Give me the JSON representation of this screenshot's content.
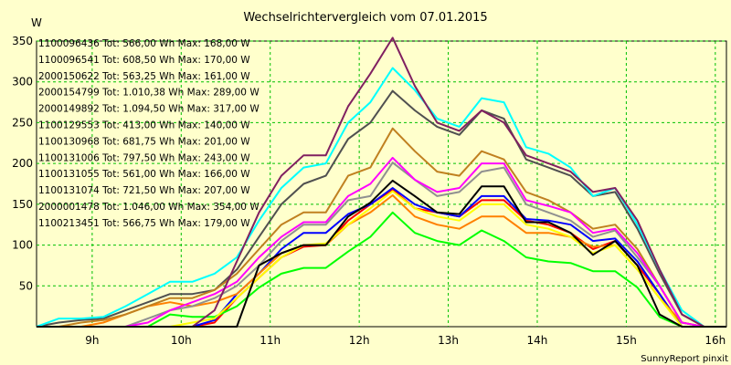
{
  "chart_data": {
    "type": "line",
    "title": "Wechselrichtervergleich vom 07.01.2015",
    "ylabel": "W",
    "xlabel": "",
    "ylim": [
      0,
      350
    ],
    "yticks": [
      50,
      100,
      150,
      200,
      250,
      300,
      350
    ],
    "xlim": [
      8.375,
      16.125
    ],
    "xticks": [
      9,
      10,
      11,
      12,
      13,
      14,
      15,
      16
    ],
    "xtick_labels": [
      "9h",
      "10h",
      "11h",
      "12h",
      "13h",
      "14h",
      "15h",
      "16h"
    ],
    "grid": true,
    "legend_position": "top-left",
    "x": [
      8.375,
      8.625,
      8.875,
      9.125,
      9.375,
      9.625,
      9.875,
      10.125,
      10.375,
      10.625,
      10.875,
      11.125,
      11.375,
      11.625,
      11.875,
      12.125,
      12.375,
      12.625,
      12.875,
      13.125,
      13.375,
      13.625,
      13.875,
      14.125,
      14.375,
      14.625,
      14.875,
      15.125,
      15.375,
      15.625,
      15.875,
      16.125
    ],
    "series": [
      {
        "name": "1100096436 Tot: 566,00 Wh Max: 168,00 W",
        "color": "#ff0000",
        "values": [
          0,
          0,
          0,
          0,
          0,
          0,
          0,
          0,
          5,
          35,
          60,
          85,
          98,
          100,
          130,
          150,
          168,
          145,
          140,
          135,
          155,
          155,
          130,
          125,
          115,
          95,
          105,
          75,
          40,
          0,
          0,
          0
        ]
      },
      {
        "name": "1100096541 Tot: 608,50 Wh Max: 170,00 W",
        "color": "#0000ff",
        "values": [
          0,
          0,
          0,
          0,
          0,
          0,
          0,
          0,
          8,
          40,
          65,
          95,
          115,
          115,
          138,
          150,
          170,
          150,
          140,
          135,
          160,
          160,
          132,
          130,
          125,
          105,
          108,
          80,
          40,
          0,
          0,
          0
        ]
      },
      {
        "name": "2000150622 Tot: 563,25 Wh Max: 161,00 W",
        "color": "#ff8000",
        "values": [
          0,
          0,
          0,
          5,
          15,
          25,
          30,
          25,
          30,
          40,
          65,
          90,
          100,
          100,
          125,
          140,
          161,
          135,
          125,
          120,
          135,
          135,
          115,
          115,
          110,
          98,
          100,
          70,
          35,
          5,
          0,
          0
        ]
      },
      {
        "name": "2000154799 Tot: 1.010,38 Wh Max: 289,00 W",
        "color": "#505050",
        "values": [
          0,
          5,
          8,
          10,
          20,
          30,
          40,
          40,
          45,
          70,
          110,
          150,
          175,
          185,
          230,
          250,
          289,
          265,
          245,
          235,
          265,
          255,
          205,
          195,
          185,
          160,
          165,
          120,
          65,
          15,
          0,
          0
        ]
      },
      {
        "name": "2000149892 Tot: 1.094,50 Wh Max: 317,00 W",
        "color": "#00ffff",
        "values": [
          0,
          10,
          10,
          12,
          25,
          40,
          55,
          55,
          65,
          85,
          130,
          170,
          195,
          200,
          250,
          275,
          317,
          290,
          255,
          245,
          280,
          275,
          220,
          212,
          195,
          160,
          170,
          125,
          70,
          20,
          0,
          0
        ]
      },
      {
        "name": "1100129553 Tot: 413,00 Wh Max: 140,00 W",
        "color": "#00ff00",
        "values": [
          0,
          0,
          0,
          0,
          0,
          0,
          15,
          12,
          12,
          25,
          48,
          65,
          72,
          72,
          92,
          110,
          140,
          115,
          105,
          100,
          118,
          105,
          85,
          80,
          78,
          68,
          68,
          48,
          12,
          0,
          0,
          0
        ]
      },
      {
        "name": "1100130968 Tot: 681,75 Wh Max: 201,00 W",
        "color": "#909090",
        "values": [
          0,
          0,
          0,
          0,
          0,
          10,
          20,
          25,
          35,
          50,
          75,
          105,
          125,
          125,
          155,
          160,
          201,
          180,
          160,
          165,
          190,
          195,
          150,
          140,
          130,
          110,
          118,
          85,
          50,
          5,
          0,
          0
        ]
      },
      {
        "name": "1100131006 Tot: 797,50 Wh Max: 243,00 W",
        "color": "#c08020",
        "values": [
          0,
          0,
          5,
          8,
          15,
          25,
          35,
          35,
          45,
          65,
          95,
          125,
          140,
          140,
          185,
          195,
          243,
          215,
          190,
          185,
          215,
          205,
          165,
          155,
          140,
          120,
          125,
          95,
          50,
          5,
          0,
          0
        ]
      },
      {
        "name": "1100131055 Tot: 561,00 Wh Max: 166,00 W",
        "color": "#ffff00",
        "values": [
          0,
          0,
          0,
          0,
          0,
          0,
          0,
          5,
          10,
          35,
          60,
          85,
          100,
          102,
          125,
          145,
          166,
          145,
          135,
          130,
          150,
          150,
          125,
          120,
          110,
          90,
          100,
          70,
          35,
          0,
          0,
          0
        ]
      },
      {
        "name": "1100131074 Tot: 721,50 Wh Max: 207,00 W",
        "color": "#ff00ff",
        "values": [
          0,
          0,
          0,
          0,
          0,
          5,
          20,
          30,
          40,
          55,
          85,
          110,
          128,
          128,
          160,
          175,
          207,
          180,
          165,
          170,
          200,
          200,
          155,
          148,
          140,
          115,
          120,
          90,
          50,
          5,
          0,
          0
        ]
      },
      {
        "name": "2000001478 Tot: 1.046,00 Wh Max: 354,00 W",
        "color": "#802060",
        "values": [
          0,
          0,
          0,
          0,
          0,
          0,
          0,
          0,
          20,
          80,
          140,
          185,
          210,
          210,
          270,
          310,
          354,
          295,
          250,
          240,
          265,
          250,
          210,
          200,
          190,
          165,
          170,
          130,
          70,
          15,
          0,
          0
        ]
      },
      {
        "name": "1100213451 Tot: 566,75 Wh Max: 179,00 W",
        "color": "#000000",
        "values": [
          0,
          0,
          0,
          0,
          0,
          0,
          0,
          0,
          0,
          0,
          75,
          90,
          100,
          100,
          135,
          152,
          179,
          160,
          140,
          138,
          172,
          172,
          128,
          128,
          115,
          88,
          105,
          75,
          15,
          0,
          0,
          0
        ]
      }
    ]
  },
  "footer": "SunnyReport pinxit"
}
